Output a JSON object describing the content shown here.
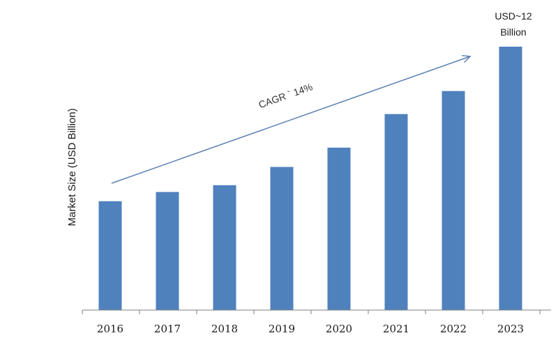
{
  "chart_data": {
    "type": "bar",
    "categories": [
      "2016",
      "2017",
      "2018",
      "2019",
      "2020",
      "2021",
      "2022",
      "2023"
    ],
    "values": [
      4.96,
      5.38,
      5.69,
      6.52,
      7.4,
      8.93,
      9.98,
      12
    ],
    "ylabel": "Market Size (USD Billion)",
    "xlabel": "",
    "annotations": {
      "last_bar_line1": "USD~12",
      "last_bar_line2": "Billion",
      "cagr": "CAGR ` 14%"
    },
    "grid": false,
    "legend": "none",
    "colors": {
      "bar": "#4f81bd",
      "arrow": "#5b7fb3",
      "axis": "#7f7f7f"
    }
  }
}
